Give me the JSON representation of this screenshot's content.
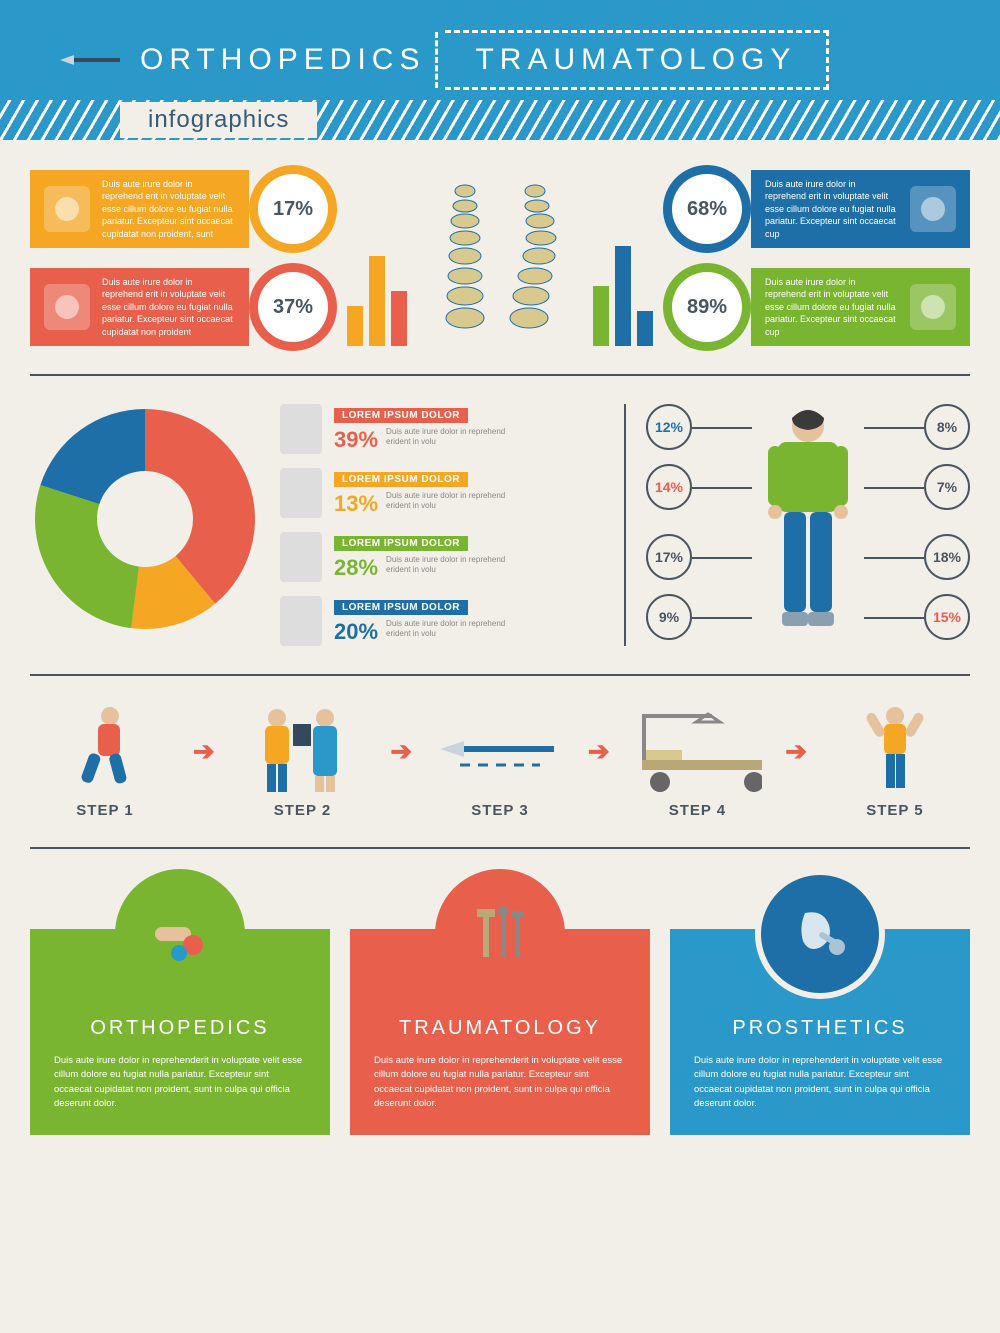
{
  "colors": {
    "blue": "#2a98c9",
    "darkblue": "#1e6fa8",
    "green": "#79b530",
    "red": "#e8604c",
    "orange": "#f5a623",
    "grey": "#4a5560",
    "bg": "#f2efe9"
  },
  "header": {
    "title_left": "ORTHOPEDICS",
    "title_right": "TRAUMATOLOGY",
    "subtitle": "infographics"
  },
  "sec1": {
    "left": [
      {
        "color": "#f5a623",
        "pct": "17%",
        "icon": "wheelchair",
        "text": "Duis aute irure dolor in reprehend erit in voluptate velit esse cillum dolore eu fugiat nulla pariatur. Excepteur sint occaecat cupidatat non proident, sunt"
      },
      {
        "color": "#e8604c",
        "pct": "37%",
        "icon": "bone",
        "text": "Duis aute irure dolor in reprehend erit in voluptate velit esse cillum dolore eu fugiat nulla pariatur. Excepteur sint occaecat cupidatat non proident"
      }
    ],
    "right": [
      {
        "color": "#1e6fa8",
        "pct": "68%",
        "icon": "xray",
        "text": "Duis aute irure dolor in reprehend erit in voluptate velit esse cillum dolore eu fugiat nulla pariatur. Excepteur sint occaecat cup"
      },
      {
        "color": "#79b530",
        "pct": "89%",
        "icon": "leg-brace",
        "text": "Duis aute irure dolor in reprehend erit in voluptate velit esse cillum dolore eu fugiat nulla pariatur. Excepteur sint occaecat cup"
      }
    ],
    "bars_left": {
      "heights": [
        40,
        90,
        55
      ],
      "colors": [
        "#f5a623",
        "#f5a623",
        "#e8604c"
      ]
    },
    "bars_right": {
      "heights": [
        60,
        100,
        35
      ],
      "colors": [
        "#79b530",
        "#1e6fa8",
        "#1e6fa8"
      ]
    }
  },
  "donut": {
    "slices": [
      {
        "label": "LOREM IPSUM DOLOR",
        "value": 39,
        "pct": "39%",
        "color": "#e8604c",
        "icon": "feet"
      },
      {
        "label": "LOREM IPSUM DOLOR",
        "value": 13,
        "pct": "13%",
        "color": "#f5a623",
        "icon": "prosthetic-leg"
      },
      {
        "label": "LOREM IPSUM DOLOR",
        "value": 28,
        "pct": "28%",
        "color": "#79b530",
        "icon": "neck-brace"
      },
      {
        "label": "LOREM IPSUM DOLOR",
        "value": 20,
        "pct": "20%",
        "color": "#1e6fa8",
        "icon": "arm-sling"
      }
    ],
    "desc": "Duis aute irure dolor in reprehend erident in volu"
  },
  "body_callouts": {
    "left": [
      {
        "v": "12%",
        "c": "#1e6fa8"
      },
      {
        "v": "14%",
        "c": "#e8604c"
      },
      {
        "v": "17%",
        "c": "#4a5560"
      },
      {
        "v": "9%",
        "c": "#4a5560"
      }
    ],
    "right": [
      {
        "v": "8%",
        "c": "#4a5560"
      },
      {
        "v": "7%",
        "c": "#4a5560"
      },
      {
        "v": "18%",
        "c": "#4a5560"
      },
      {
        "v": "15%",
        "c": "#e8604c"
      }
    ]
  },
  "steps": [
    {
      "label": "STEP 1",
      "icon": "runner"
    },
    {
      "label": "STEP 2",
      "icon": "doctor-patient"
    },
    {
      "label": "STEP 3",
      "icon": "scalpel"
    },
    {
      "label": "STEP 4",
      "icon": "hospital-bed"
    },
    {
      "label": "STEP 5",
      "icon": "recovered"
    }
  ],
  "cards": [
    {
      "title": "ORTHOPEDICS",
      "color": "#79b530",
      "circle": "#79b530",
      "text": "Duis aute irure dolor in reprehenderit in voluptate velit esse cillum dolore eu fugiat nulla pariatur. Excepteur sint occaecat cupidatat non proident, sunt in culpa qui officia deserunt dolor."
    },
    {
      "title": "TRAUMATOLOGY",
      "color": "#e8604c",
      "circle": "#e8604c",
      "text": "Duis aute irure dolor in reprehenderit in voluptate velit esse cillum dolore eu fugiat nulla pariatur. Excepteur sint occaecat cupidatat non proident, sunt in culpa qui officia deserunt dolor."
    },
    {
      "title": "PROSTHETICS",
      "color": "#2a98c9",
      "circle": "#1e6fa8",
      "text": "Duis aute irure dolor in reprehenderit in voluptate velit esse cillum dolore eu fugiat nulla pariatur. Excepteur sint occaecat cupidatat non proident, sunt in culpa qui officia deserunt dolor."
    }
  ]
}
